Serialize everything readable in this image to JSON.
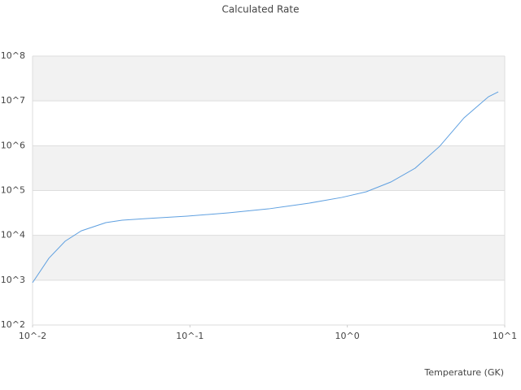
{
  "chart_data": {
    "type": "line",
    "title": "Calculated Rate",
    "xlabel": "Temperature (GK)",
    "x": [
      0.01,
      0.0127,
      0.0161,
      0.0204,
      0.0292,
      0.0371,
      0.053,
      0.0962,
      0.175,
      0.316,
      0.574,
      0.925,
      1.32,
      1.89,
      2.7,
      3.86,
      5.52,
      7.89,
      9.1
    ],
    "values": [
      880,
      3090,
      7400,
      12600,
      19200,
      21800,
      23700,
      26800,
      31700,
      39000,
      52400,
      70300,
      94000,
      155000,
      316000,
      970000,
      4200000,
      12400000,
      15900000
    ],
    "color": "#5fa0e0",
    "xscale": "log",
    "yscale": "log",
    "xlim": [
      0.01,
      10
    ],
    "xticks": [
      {
        "value": 0.01,
        "label": "10^-2"
      },
      {
        "value": 0.1,
        "label": "10^-1"
      },
      {
        "value": 1,
        "label": "10^0"
      },
      {
        "value": 10,
        "label": "10^1"
      }
    ],
    "ylim": [
      100,
      100000000
    ],
    "yticks": [
      {
        "value": 100,
        "label": "10^2"
      },
      {
        "value": 1000,
        "label": "10^3"
      },
      {
        "value": 10000,
        "label": "10^4"
      },
      {
        "value": 100000,
        "label": "10^5"
      },
      {
        "value": 1000000,
        "label": "10^6"
      },
      {
        "value": 10000000,
        "label": "10^7"
      },
      {
        "value": 100000000,
        "label": "10^8"
      }
    ],
    "grid": true
  }
}
